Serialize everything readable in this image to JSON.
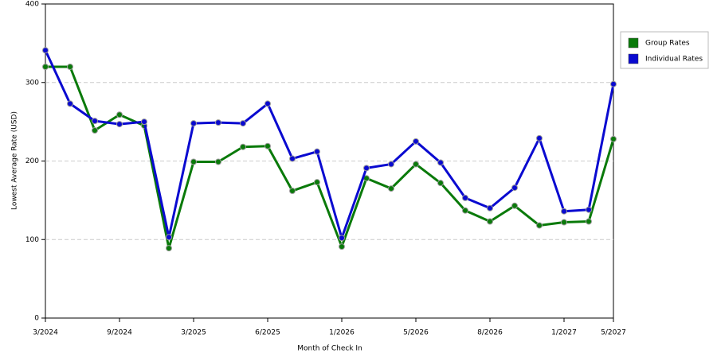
{
  "chart_data": {
    "type": "line",
    "x_label": "Month of Check In",
    "y_label": "Lowest Average Rate (USD)",
    "categories": [
      "3/2024",
      null,
      null,
      "9/2024",
      null,
      null,
      "3/2025",
      null,
      null,
      "6/2025",
      null,
      null,
      "1/2026",
      null,
      null,
      "5/2026",
      null,
      null,
      "8/2026",
      null,
      null,
      "1/2027",
      null,
      "5/2027"
    ],
    "series": [
      {
        "name": "Group Rates",
        "color": "#0a7a0a",
        "values": [
          320,
          320,
          239,
          259,
          245,
          89,
          199,
          199,
          218,
          219,
          162,
          173,
          91,
          178,
          165,
          196,
          172,
          137,
          123,
          143,
          118,
          122,
          123,
          228
        ]
      },
      {
        "name": "Individual Rates",
        "color": "#0a0ad0",
        "values": [
          341,
          273,
          251,
          247,
          250,
          103,
          248,
          249,
          248,
          273,
          203,
          212,
          102,
          191,
          196,
          225,
          198,
          153,
          140,
          166,
          229,
          136,
          138,
          298
        ]
      }
    ],
    "ylim": [
      0,
      400
    ],
    "yticks": [
      0,
      100,
      200,
      300,
      400
    ],
    "grid": true,
    "legend": "right"
  }
}
